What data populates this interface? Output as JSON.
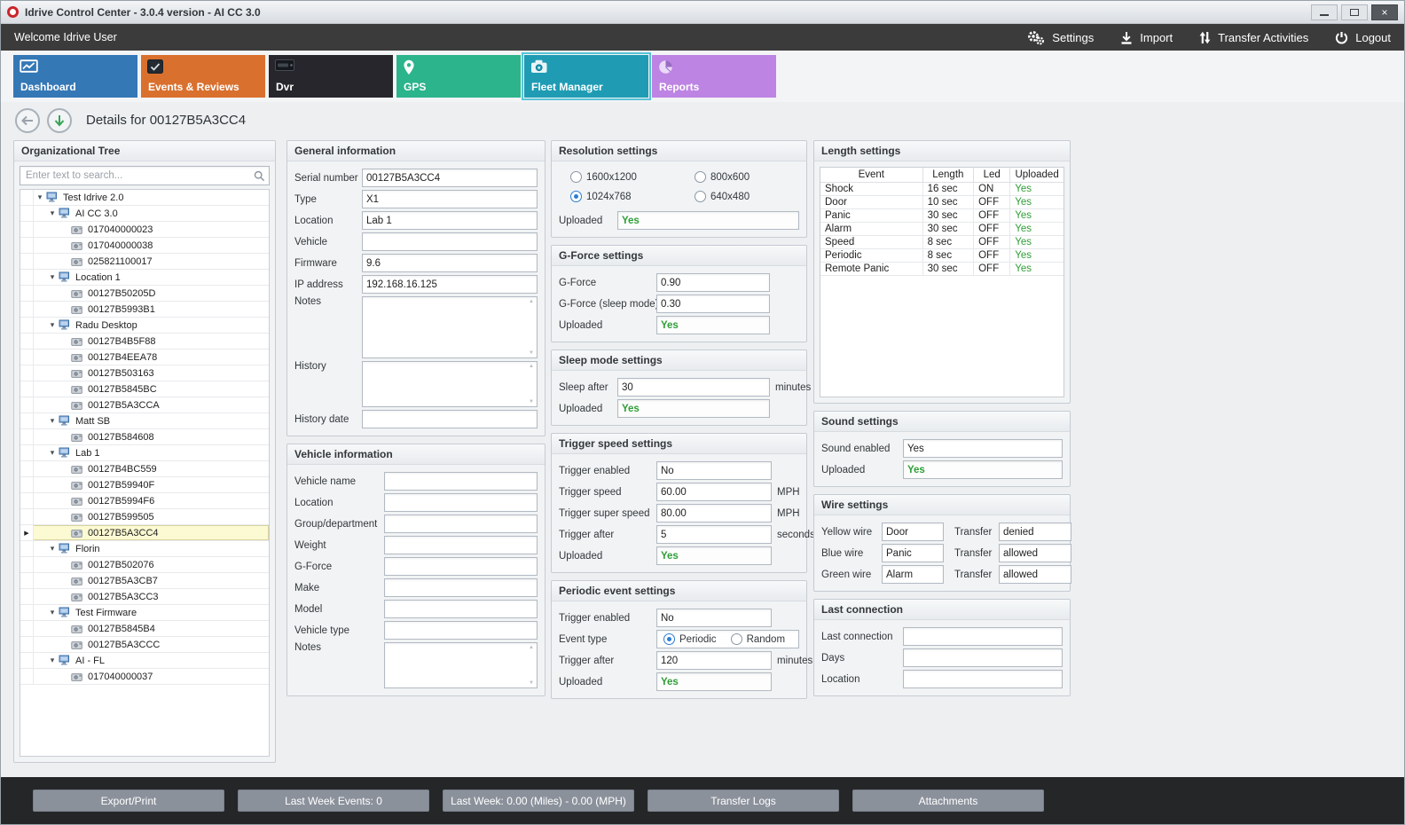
{
  "window": {
    "title": "Idrive Control Center - 3.0.4 version - AI CC 3.0"
  },
  "topbar": {
    "welcome": "Welcome Idrive User",
    "actions": [
      {
        "label": "Settings",
        "icon": "settings-gears-icon"
      },
      {
        "label": "Import",
        "icon": "import-download-icon"
      },
      {
        "label": "Transfer Activities",
        "icon": "transfer-arrows-icon"
      },
      {
        "label": "Logout",
        "icon": "power-icon"
      }
    ]
  },
  "tabs": [
    {
      "label": "Dashboard",
      "icon": "dashboard-icon",
      "color": "#3478b6",
      "selected": false
    },
    {
      "label": "Events & Reviews",
      "icon": "events-icon",
      "color": "#d9702e",
      "selected": false
    },
    {
      "label": "Dvr",
      "icon": "dvr-icon",
      "color": "#26262c",
      "selected": false
    },
    {
      "label": "GPS",
      "icon": "gps-pin-icon",
      "color": "#2cb48c",
      "selected": false
    },
    {
      "label": "Fleet Manager",
      "icon": "fleet-camera-icon",
      "color": "#1f9cb4",
      "selected": true
    },
    {
      "label": "Reports",
      "icon": "reports-pie-icon",
      "color": "#bd84e3",
      "selected": false
    }
  ],
  "page": {
    "title": "Details for 00127B5A3CC4"
  },
  "tree": {
    "title": "Organizational Tree",
    "search_placeholder": "Enter text to search...",
    "items": [
      {
        "label": "Test Idrive 2.0",
        "level": 0,
        "icon": "group-icon",
        "children": true
      },
      {
        "label": "AI CC 3.0",
        "level": 1,
        "icon": "group-icon",
        "children": true
      },
      {
        "label": "017040000023",
        "level": 2,
        "icon": "device-icon"
      },
      {
        "label": "017040000038",
        "level": 2,
        "icon": "device-icon"
      },
      {
        "label": "025821100017",
        "level": 2,
        "icon": "device-icon"
      },
      {
        "label": "Location 1",
        "level": 1,
        "icon": "group-icon",
        "children": true
      },
      {
        "label": "00127B50205D",
        "level": 2,
        "icon": "device-icon"
      },
      {
        "label": "00127B5993B1",
        "level": 2,
        "icon": "device-icon"
      },
      {
        "label": "Radu Desktop",
        "level": 1,
        "icon": "group-icon",
        "children": true
      },
      {
        "label": "00127B4B5F88",
        "level": 2,
        "icon": "device-icon"
      },
      {
        "label": "00127B4EEA78",
        "level": 2,
        "icon": "device-icon"
      },
      {
        "label": "00127B503163",
        "level": 2,
        "icon": "device-icon"
      },
      {
        "label": "00127B5845BC",
        "level": 2,
        "icon": "device-icon"
      },
      {
        "label": "00127B5A3CCA",
        "level": 2,
        "icon": "device-icon"
      },
      {
        "label": "Matt SB",
        "level": 1,
        "icon": "group-icon",
        "children": true
      },
      {
        "label": "00127B584608",
        "level": 2,
        "icon": "device-icon"
      },
      {
        "label": "Lab 1",
        "level": 1,
        "icon": "group-icon",
        "children": true
      },
      {
        "label": "00127B4BC559",
        "level": 2,
        "icon": "device-icon"
      },
      {
        "label": "00127B59940F",
        "level": 2,
        "icon": "device-icon"
      },
      {
        "label": "00127B5994F6",
        "level": 2,
        "icon": "device-icon"
      },
      {
        "label": "00127B599505",
        "level": 2,
        "icon": "device-icon"
      },
      {
        "label": "00127B5A3CC4",
        "level": 2,
        "icon": "device-icon",
        "selected": true
      },
      {
        "label": "Florin",
        "level": 1,
        "icon": "group-icon",
        "children": true
      },
      {
        "label": "00127B502076",
        "level": 2,
        "icon": "device-icon"
      },
      {
        "label": "00127B5A3CB7",
        "level": 2,
        "icon": "device-icon"
      },
      {
        "label": "00127B5A3CC3",
        "level": 2,
        "icon": "device-icon"
      },
      {
        "label": "Test Firmware",
        "level": 1,
        "icon": "group-icon",
        "children": true
      },
      {
        "label": "00127B5845B4",
        "level": 2,
        "icon": "device-icon"
      },
      {
        "label": "00127B5A3CCC",
        "level": 2,
        "icon": "device-icon"
      },
      {
        "label": "AI - FL",
        "level": 1,
        "icon": "group-icon",
        "children": true
      },
      {
        "label": "017040000037",
        "level": 2,
        "icon": "device-icon"
      }
    ]
  },
  "panels": {
    "general_info": {
      "title": "General information",
      "fields": [
        {
          "label": "Serial number",
          "value": "00127B5A3CC4",
          "type": "text"
        },
        {
          "label": "Type",
          "value": "X1",
          "type": "text"
        },
        {
          "label": "Location",
          "value": "Lab 1",
          "type": "text"
        },
        {
          "label": "Vehicle",
          "value": "",
          "type": "text"
        },
        {
          "label": "Firmware",
          "value": "9.6",
          "type": "text"
        },
        {
          "label": "IP address",
          "value": "192.168.16.125",
          "type": "text"
        },
        {
          "label": "Notes",
          "value": "",
          "type": "multiline"
        },
        {
          "label": "History",
          "value": "",
          "type": "multiline2"
        },
        {
          "label": "History date",
          "value": "",
          "type": "text"
        }
      ]
    },
    "vehicle_info": {
      "title": "Vehicle information",
      "fields": [
        {
          "label": "Vehicle name",
          "value": "",
          "type": "text"
        },
        {
          "label": "Location",
          "value": "",
          "type": "text"
        },
        {
          "label": "Group/department",
          "value": "",
          "type": "text"
        },
        {
          "label": "Weight",
          "value": "",
          "type": "text"
        },
        {
          "label": "G-Force",
          "value": "",
          "type": "text"
        },
        {
          "label": "Make",
          "value": "",
          "type": "text"
        },
        {
          "label": "Model",
          "value": "",
          "type": "text"
        },
        {
          "label": "Vehicle type",
          "value": "",
          "type": "text"
        },
        {
          "label": "Notes",
          "value": "",
          "type": "multiline-sm"
        }
      ]
    },
    "resolution": {
      "title": "Resolution settings",
      "options": [
        {
          "label": "1600x1200",
          "selected": false
        },
        {
          "label": "800x600",
          "selected": false
        },
        {
          "label": "1024x768",
          "selected": true
        },
        {
          "label": "640x480",
          "selected": false
        }
      ],
      "fields": [
        {
          "label": "Uploaded",
          "value": "Yes",
          "type": "green"
        }
      ]
    },
    "gforce": {
      "title": "G-Force settings",
      "fields": [
        {
          "label": "G-Force",
          "value": "0.90",
          "type": "text"
        },
        {
          "label": "G-Force (sleep mode)",
          "value": "0.30",
          "type": "text"
        },
        {
          "label": "Uploaded",
          "value": "Yes",
          "type": "green"
        }
      ]
    },
    "sleep": {
      "title": "Sleep mode settings",
      "fields": [
        {
          "label": "Sleep after",
          "value": "30",
          "type": "text",
          "suffix": "minutes"
        },
        {
          "label": "Uploaded",
          "value": "Yes",
          "type": "green"
        }
      ]
    },
    "trigger_speed": {
      "title": "Trigger speed settings",
      "fields": [
        {
          "label": "Trigger enabled",
          "value": "No",
          "type": "text"
        },
        {
          "label": "Trigger speed",
          "value": "60.00",
          "type": "text",
          "suffix": "MPH"
        },
        {
          "label": "Trigger super speed",
          "value": "80.00",
          "type": "text",
          "suffix": "MPH"
        },
        {
          "label": "Trigger after",
          "value": "5",
          "type": "text",
          "suffix": "seconds"
        },
        {
          "label": "Uploaded",
          "value": "Yes",
          "type": "green"
        }
      ]
    },
    "periodic": {
      "title": "Periodic event settings",
      "fields": [
        {
          "label": "Trigger enabled",
          "value": "No",
          "type": "text"
        },
        {
          "label": "Event type",
          "type": "radios",
          "options": [
            {
              "label": "Periodic",
              "selected": true
            },
            {
              "label": "Random",
              "selected": false
            }
          ]
        },
        {
          "label": "Trigger after",
          "value": "120",
          "type": "text",
          "suffix": "minutes"
        },
        {
          "label": "Uploaded",
          "value": "Yes",
          "type": "green"
        }
      ]
    },
    "length": {
      "title": "Length settings",
      "columns": [
        "Event",
        "Length",
        "Led",
        "Uploaded"
      ],
      "rows": [
        [
          "Shock",
          "16 sec",
          "ON",
          "Yes"
        ],
        [
          "Door",
          "10 sec",
          "OFF",
          "Yes"
        ],
        [
          "Panic",
          "30 sec",
          "OFF",
          "Yes"
        ],
        [
          "Alarm",
          "30 sec",
          "OFF",
          "Yes"
        ],
        [
          "Speed",
          "8 sec",
          "OFF",
          "Yes"
        ],
        [
          "Periodic",
          "8 sec",
          "OFF",
          "Yes"
        ],
        [
          "Remote Panic",
          "30 sec",
          "OFF",
          "Yes"
        ]
      ]
    },
    "sound": {
      "title": "Sound settings",
      "fields": [
        {
          "label": "Sound enabled",
          "value": "Yes",
          "type": "text"
        },
        {
          "label": "Uploaded",
          "value": "Yes",
          "type": "green"
        }
      ]
    },
    "wire": {
      "title": "Wire settings",
      "rows": [
        {
          "wire_label": "Yellow wire",
          "wire_value": "Door",
          "transfer_label": "Transfer",
          "transfer_value": "denied"
        },
        {
          "wire_label": "Blue wire",
          "wire_value": "Panic",
          "transfer_label": "Transfer",
          "transfer_value": "allowed"
        },
        {
          "wire_label": "Green wire",
          "wire_value": "Alarm",
          "transfer_label": "Transfer",
          "transfer_value": "allowed"
        }
      ]
    },
    "last_connection": {
      "title": "Last connection",
      "fields": [
        {
          "label": "Last connection",
          "value": "",
          "type": "text"
        },
        {
          "label": "Days",
          "value": "",
          "type": "text"
        },
        {
          "label": "Location",
          "value": "",
          "type": "text"
        }
      ]
    }
  },
  "bottombar": {
    "buttons": [
      "Export/Print",
      "Last Week Events: 0",
      "Last Week: 0.00 (Miles) - 0.00 (MPH)",
      "Transfer Logs",
      "Attachments"
    ]
  },
  "colors": {
    "positive_green": "#2f9e37",
    "selected_tab_outline": "#58c4d6",
    "topbar_background": "#3b3b3b"
  }
}
